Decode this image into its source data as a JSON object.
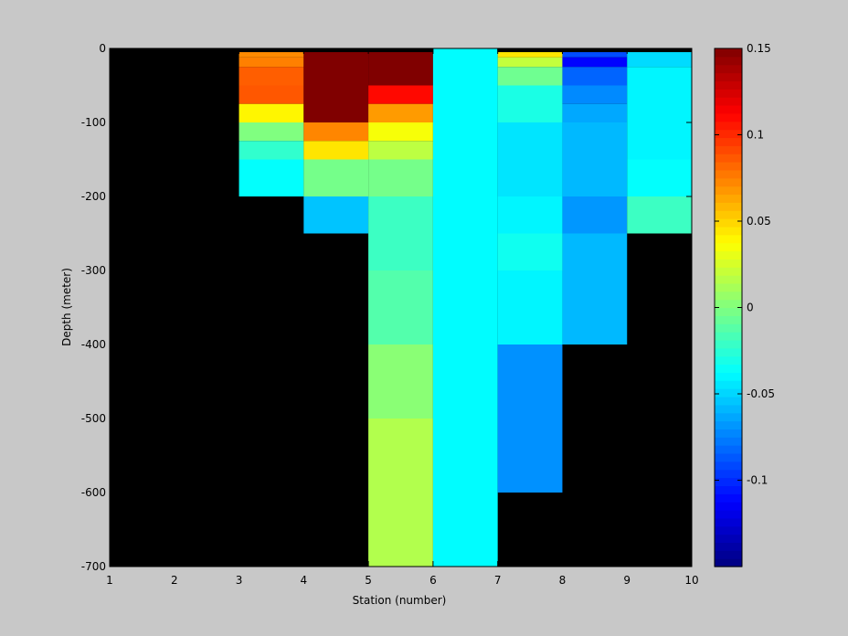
{
  "chart_data": {
    "type": "heatmap",
    "title": "",
    "xlabel": "Station (number)",
    "ylabel": "Depth (meter)",
    "xlim": [
      1,
      10
    ],
    "ylim": [
      -700,
      0
    ],
    "x_ticks": [
      "1",
      "2",
      "3",
      "4",
      "5",
      "6",
      "7",
      "8",
      "9",
      "10"
    ],
    "y_ticks": [
      "0",
      "-100",
      "-200",
      "-300",
      "-400",
      "-500",
      "-600",
      "-700"
    ],
    "colorbar": {
      "colormap": "jet",
      "range": [
        -0.15,
        0.15
      ],
      "ticks": [
        "0.15",
        "0.1",
        "0.05",
        "0",
        "-0.05",
        "-0.1"
      ]
    },
    "missing_color": "#000000",
    "cells": [
      {
        "x0": 3,
        "x1": 4,
        "top": -5,
        "bottom": -12,
        "value": 0.072
      },
      {
        "x0": 3,
        "x1": 4,
        "top": -12,
        "bottom": -25,
        "value": 0.075
      },
      {
        "x0": 3,
        "x1": 4,
        "top": -25,
        "bottom": -50,
        "value": 0.085
      },
      {
        "x0": 3,
        "x1": 4,
        "top": -50,
        "bottom": -75,
        "value": 0.087
      },
      {
        "x0": 3,
        "x1": 4,
        "top": -75,
        "bottom": -100,
        "value": 0.04
      },
      {
        "x0": 3,
        "x1": 4,
        "top": -100,
        "bottom": -125,
        "value": 0.0
      },
      {
        "x0": 3,
        "x1": 4,
        "top": -125,
        "bottom": -150,
        "value": -0.023
      },
      {
        "x0": 3,
        "x1": 4,
        "top": -150,
        "bottom": -200,
        "value": -0.037
      },
      {
        "x0": 4,
        "x1": 5,
        "top": -5,
        "bottom": -100,
        "value": 0.15
      },
      {
        "x0": 4,
        "x1": 5,
        "top": -100,
        "bottom": -125,
        "value": 0.073
      },
      {
        "x0": 4,
        "x1": 5,
        "top": -125,
        "bottom": -150,
        "value": 0.045
      },
      {
        "x0": 4,
        "x1": 5,
        "top": -150,
        "bottom": -200,
        "value": -0.003
      },
      {
        "x0": 4,
        "x1": 5,
        "top": -200,
        "bottom": -250,
        "value": -0.055
      },
      {
        "x0": 5,
        "x1": 6,
        "top": -5,
        "bottom": -50,
        "value": 0.15
      },
      {
        "x0": 5,
        "x1": 6,
        "top": -50,
        "bottom": -75,
        "value": 0.11
      },
      {
        "x0": 5,
        "x1": 6,
        "top": -75,
        "bottom": -100,
        "value": 0.067
      },
      {
        "x0": 5,
        "x1": 6,
        "top": -100,
        "bottom": -125,
        "value": 0.035
      },
      {
        "x0": 5,
        "x1": 6,
        "top": -125,
        "bottom": -150,
        "value": 0.018
      },
      {
        "x0": 5,
        "x1": 6,
        "top": -150,
        "bottom": -200,
        "value": -0.003
      },
      {
        "x0": 5,
        "x1": 6,
        "top": -200,
        "bottom": -300,
        "value": -0.02
      },
      {
        "x0": 5,
        "x1": 6,
        "top": -300,
        "bottom": -400,
        "value": -0.013
      },
      {
        "x0": 5,
        "x1": 6,
        "top": -400,
        "bottom": -500,
        "value": 0.003
      },
      {
        "x0": 5,
        "x1": 6,
        "top": -500,
        "bottom": -700,
        "value": 0.015
      },
      {
        "x0": 6,
        "x1": 7,
        "top": 0,
        "bottom": -700,
        "value": -0.038
      },
      {
        "x0": 7,
        "x1": 8,
        "top": -5,
        "bottom": -12,
        "value": 0.045
      },
      {
        "x0": 7,
        "x1": 8,
        "top": -12,
        "bottom": -25,
        "value": 0.02
      },
      {
        "x0": 7,
        "x1": 8,
        "top": -25,
        "bottom": -50,
        "value": -0.005
      },
      {
        "x0": 7,
        "x1": 8,
        "top": -50,
        "bottom": -100,
        "value": -0.03
      },
      {
        "x0": 7,
        "x1": 8,
        "top": -100,
        "bottom": -200,
        "value": -0.045
      },
      {
        "x0": 7,
        "x1": 8,
        "top": -200,
        "bottom": -250,
        "value": -0.04
      },
      {
        "x0": 7,
        "x1": 8,
        "top": -250,
        "bottom": -300,
        "value": -0.033
      },
      {
        "x0": 7,
        "x1": 8,
        "top": -300,
        "bottom": -400,
        "value": -0.04
      },
      {
        "x0": 7,
        "x1": 8,
        "top": -400,
        "bottom": -600,
        "value": -0.07
      },
      {
        "x0": 8,
        "x1": 9,
        "top": -5,
        "bottom": -12,
        "value": -0.09
      },
      {
        "x0": 8,
        "x1": 9,
        "top": -12,
        "bottom": -25,
        "value": -0.112
      },
      {
        "x0": 8,
        "x1": 9,
        "top": -25,
        "bottom": -50,
        "value": -0.083
      },
      {
        "x0": 8,
        "x1": 9,
        "top": -50,
        "bottom": -75,
        "value": -0.072
      },
      {
        "x0": 8,
        "x1": 9,
        "top": -75,
        "bottom": -100,
        "value": -0.063
      },
      {
        "x0": 8,
        "x1": 9,
        "top": -100,
        "bottom": -200,
        "value": -0.058
      },
      {
        "x0": 8,
        "x1": 9,
        "top": -200,
        "bottom": -250,
        "value": -0.068
      },
      {
        "x0": 8,
        "x1": 9,
        "top": -250,
        "bottom": -400,
        "value": -0.058
      },
      {
        "x0": 9,
        "x1": 10,
        "top": -5,
        "bottom": -25,
        "value": -0.048
      },
      {
        "x0": 9,
        "x1": 10,
        "top": -25,
        "bottom": -150,
        "value": -0.04
      },
      {
        "x0": 9,
        "x1": 10,
        "top": -150,
        "bottom": -200,
        "value": -0.037
      },
      {
        "x0": 9,
        "x1": 10,
        "top": -200,
        "bottom": -250,
        "value": -0.02
      }
    ]
  }
}
